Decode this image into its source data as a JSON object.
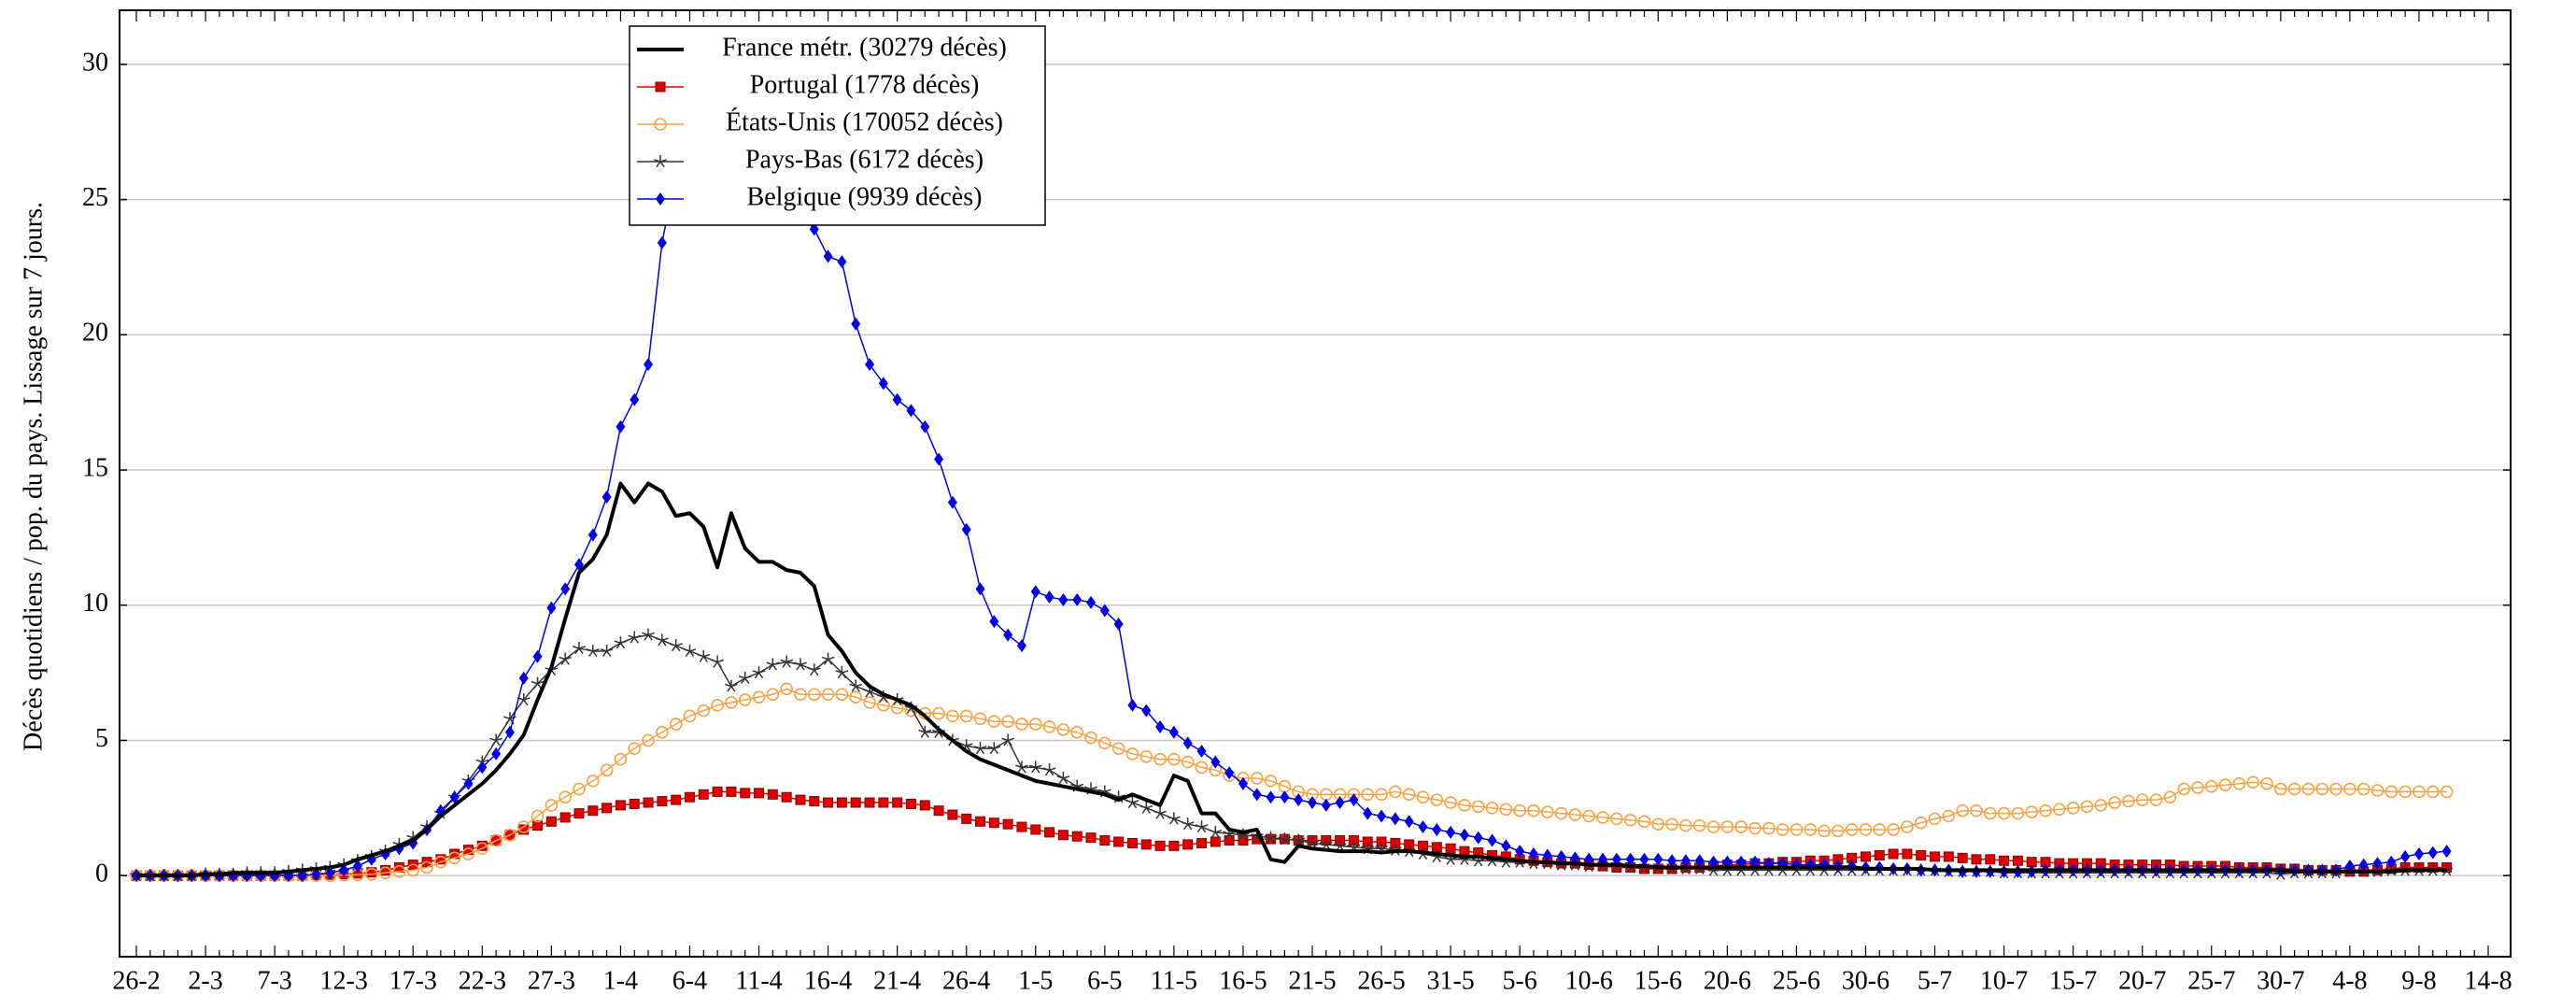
{
  "chart_data": {
    "type": "line",
    "y_label": "Décès quotidiens / pop. du pays. Lissage sur 7 jours.",
    "categories": [
      "26-2",
      null,
      null,
      null,
      null,
      "2-3",
      null,
      null,
      null,
      null,
      "7-3",
      null,
      null,
      null,
      null,
      "12-3",
      null,
      null,
      null,
      null,
      "17-3",
      null,
      null,
      null,
      null,
      "22-3",
      null,
      null,
      null,
      null,
      "27-3",
      null,
      null,
      null,
      null,
      "1-4",
      null,
      null,
      null,
      null,
      "6-4",
      null,
      null,
      null,
      null,
      "11-4",
      null,
      null,
      null,
      null,
      "16-4",
      null,
      null,
      null,
      null,
      "21-4",
      null,
      null,
      null,
      null,
      "26-4",
      null,
      null,
      null,
      null,
      "1-5",
      null,
      null,
      null,
      null,
      "6-5",
      null,
      null,
      null,
      null,
      "11-5",
      null,
      null,
      null,
      null,
      "16-5",
      null,
      null,
      null,
      null,
      "21-5",
      null,
      null,
      null,
      null,
      "26-5",
      null,
      null,
      null,
      null,
      "31-5",
      null,
      null,
      null,
      null,
      "5-6",
      null,
      null,
      null,
      null,
      "10-6",
      null,
      null,
      null,
      null,
      "15-6",
      null,
      null,
      null,
      null,
      "20-6",
      null,
      null,
      null,
      null,
      "25-6",
      null,
      null,
      null,
      null,
      "30-6",
      null,
      null,
      null,
      null,
      "5-7",
      null,
      null,
      null,
      null,
      "10-7",
      null,
      null,
      null,
      null,
      "15-7",
      null,
      null,
      null,
      null,
      "20-7",
      null,
      null,
      null,
      null,
      "25-7",
      null,
      null,
      null,
      null,
      "30-7",
      null,
      null,
      null,
      null,
      "4-8",
      null,
      null,
      null,
      null,
      "9-8",
      null,
      null,
      null,
      null,
      "14-8"
    ],
    "ylim": [
      -3,
      32
    ],
    "yticks": [
      0,
      5,
      10,
      15,
      20,
      25,
      30
    ],
    "grid": true,
    "series": [
      {
        "name": "France métr. (30279 décès)",
        "color": "#000000",
        "marker": "none",
        "line_width": 4,
        "values": [
          0,
          0,
          0,
          0,
          0,
          0.05,
          0.05,
          0.1,
          0.1,
          0.1,
          0.1,
          0.15,
          0.2,
          0.25,
          0.3,
          0.4,
          0.6,
          0.75,
          0.9,
          1.1,
          1.3,
          1.7,
          2.2,
          2.6,
          3.0,
          3.4,
          3.9,
          4.5,
          5.2,
          6.5,
          7.7,
          9.5,
          11.2,
          11.7,
          12.6,
          14.5,
          13.8,
          14.5,
          14.2,
          13.3,
          13.4,
          12.9,
          11.4,
          13.4,
          12.1,
          11.6,
          11.6,
          11.3,
          11.2,
          10.7,
          8.9,
          8.3,
          7.5,
          7.0,
          6.7,
          6.5,
          6.3,
          5.9,
          5.4,
          5.0,
          4.6,
          4.3,
          4.1,
          3.9,
          3.7,
          3.5,
          3.4,
          3.3,
          3.2,
          3.1,
          3.0,
          2.8,
          3.0,
          2.8,
          2.6,
          3.7,
          3.5,
          2.3,
          2.3,
          1.7,
          1.6,
          1.7,
          0.6,
          0.5,
          1.1,
          1.0,
          0.95,
          0.9,
          0.9,
          0.9,
          0.85,
          0.9,
          0.9,
          0.85,
          0.8,
          0.75,
          0.7,
          0.7,
          0.65,
          0.6,
          0.55,
          0.5,
          0.5,
          0.45,
          0.45,
          0.4,
          0.4,
          0.4,
          0.35,
          0.35,
          0.3,
          0.3,
          0.3,
          0.3,
          0.3,
          0.3,
          0.3,
          0.3,
          0.3,
          0.3,
          0.3,
          0.3,
          0.3,
          0.3,
          0.3,
          0.25,
          0.25,
          0.25,
          0.25,
          0.25,
          0.2,
          0.2,
          0.2,
          0.2,
          0.2,
          0.2,
          0.2,
          0.2,
          0.2,
          0.2,
          0.2,
          0.2,
          0.2,
          0.2,
          0.2,
          0.2,
          0.2,
          0.2,
          0.2,
          0.2,
          0.2,
          0.2,
          0.2,
          0.2,
          0.2,
          0.2,
          0.15,
          0.15,
          0.15,
          0.15,
          0.15,
          0.15,
          0.15,
          0.15,
          0.2,
          0.2,
          0.2,
          0.2,
          null,
          null,
          null
        ]
      },
      {
        "name": "Portugal (1778 décès)",
        "color": "#e00000",
        "marker": "square",
        "line_width": 1.5,
        "values": [
          0,
          0,
          0,
          0,
          0,
          0,
          0,
          0,
          0,
          0,
          0,
          0,
          0,
          0.02,
          0.03,
          0.05,
          0.08,
          0.12,
          0.2,
          0.3,
          0.4,
          0.5,
          0.6,
          0.8,
          0.95,
          1.1,
          1.3,
          1.5,
          1.7,
          1.85,
          2.0,
          2.15,
          2.3,
          2.4,
          2.5,
          2.6,
          2.65,
          2.7,
          2.75,
          2.8,
          2.9,
          3.0,
          3.1,
          3.1,
          3.05,
          3.05,
          3.0,
          2.9,
          2.8,
          2.75,
          2.7,
          2.7,
          2.7,
          2.7,
          2.7,
          2.7,
          2.65,
          2.6,
          2.4,
          2.25,
          2.1,
          2.0,
          1.95,
          1.9,
          1.8,
          1.7,
          1.6,
          1.5,
          1.45,
          1.4,
          1.3,
          1.25,
          1.2,
          1.15,
          1.1,
          1.1,
          1.15,
          1.2,
          1.25,
          1.3,
          1.3,
          1.35,
          1.35,
          1.35,
          1.3,
          1.3,
          1.3,
          1.3,
          1.3,
          1.25,
          1.25,
          1.2,
          1.15,
          1.1,
          1.05,
          1.0,
          0.9,
          0.85,
          0.75,
          0.7,
          0.6,
          0.55,
          0.5,
          0.45,
          0.45,
          0.4,
          0.35,
          0.3,
          0.3,
          0.25,
          0.25,
          0.25,
          0.3,
          0.3,
          0.35,
          0.4,
          0.4,
          0.45,
          0.45,
          0.5,
          0.5,
          0.55,
          0.55,
          0.6,
          0.65,
          0.7,
          0.75,
          0.8,
          0.8,
          0.75,
          0.7,
          0.7,
          0.65,
          0.6,
          0.6,
          0.55,
          0.55,
          0.5,
          0.5,
          0.45,
          0.45,
          0.45,
          0.45,
          0.4,
          0.4,
          0.4,
          0.4,
          0.4,
          0.35,
          0.35,
          0.35,
          0.35,
          0.3,
          0.3,
          0.3,
          0.25,
          0.25,
          0.2,
          0.2,
          0.2,
          0.15,
          0.15,
          0.2,
          0.25,
          0.3,
          0.3,
          0.3,
          0.3,
          null,
          null,
          null
        ]
      },
      {
        "name": "États-Unis (170052 décès)",
        "color": "#ffa040",
        "marker": "circle",
        "line_width": 1.5,
        "values": [
          0,
          0,
          0,
          0,
          0,
          0,
          0,
          0,
          0,
          0,
          0,
          0,
          0,
          0,
          0,
          0.02,
          0.03,
          0.05,
          0.1,
          0.15,
          0.2,
          0.3,
          0.5,
          0.65,
          0.8,
          1.0,
          1.3,
          1.5,
          1.8,
          2.2,
          2.6,
          2.9,
          3.2,
          3.5,
          3.9,
          4.3,
          4.7,
          5.0,
          5.3,
          5.6,
          5.9,
          6.1,
          6.3,
          6.4,
          6.5,
          6.6,
          6.7,
          6.9,
          6.7,
          6.7,
          6.7,
          6.7,
          6.6,
          6.4,
          6.3,
          6.2,
          6.1,
          6.0,
          6.0,
          5.9,
          5.9,
          5.8,
          5.7,
          5.7,
          5.6,
          5.6,
          5.5,
          5.4,
          5.3,
          5.1,
          4.9,
          4.7,
          4.5,
          4.4,
          4.3,
          4.3,
          4.2,
          4.0,
          3.9,
          3.7,
          3.6,
          3.6,
          3.5,
          3.3,
          3.1,
          3.0,
          3.0,
          3.0,
          3.0,
          3.0,
          3.0,
          3.1,
          3.0,
          2.9,
          2.8,
          2.7,
          2.6,
          2.55,
          2.5,
          2.45,
          2.4,
          2.4,
          2.35,
          2.3,
          2.25,
          2.2,
          2.15,
          2.1,
          2.05,
          2.0,
          1.9,
          1.9,
          1.85,
          1.85,
          1.8,
          1.8,
          1.8,
          1.75,
          1.75,
          1.7,
          1.7,
          1.7,
          1.65,
          1.65,
          1.7,
          1.7,
          1.7,
          1.7,
          1.8,
          1.95,
          2.1,
          2.2,
          2.4,
          2.4,
          2.3,
          2.3,
          2.3,
          2.35,
          2.4,
          2.45,
          2.5,
          2.55,
          2.6,
          2.7,
          2.75,
          2.8,
          2.8,
          2.9,
          3.2,
          3.25,
          3.3,
          3.35,
          3.4,
          3.45,
          3.4,
          3.2,
          3.2,
          3.2,
          3.2,
          3.2,
          3.2,
          3.2,
          3.15,
          3.1,
          3.1,
          3.1,
          3.1,
          3.1,
          null,
          null,
          null
        ]
      },
      {
        "name": "Pays-Bas (6172 décès)",
        "color": "#333333",
        "marker": "star",
        "line_width": 1.5,
        "values": [
          0,
          0,
          0,
          0,
          0,
          0.05,
          0.05,
          0.05,
          0.1,
          0.1,
          0.1,
          0.15,
          0.2,
          0.25,
          0.3,
          0.4,
          0.55,
          0.7,
          0.9,
          1.15,
          1.4,
          1.8,
          2.3,
          2.9,
          3.5,
          4.2,
          5.0,
          5.8,
          6.5,
          7.1,
          7.6,
          8.0,
          8.4,
          8.3,
          8.3,
          8.6,
          8.8,
          8.9,
          8.7,
          8.5,
          8.3,
          8.1,
          7.9,
          7.0,
          7.3,
          7.5,
          7.8,
          7.9,
          7.8,
          7.6,
          8.0,
          7.5,
          7.0,
          6.8,
          6.6,
          6.5,
          6.2,
          5.3,
          5.3,
          5.0,
          4.8,
          4.7,
          4.7,
          5.0,
          4.0,
          4.0,
          3.9,
          3.6,
          3.3,
          3.2,
          3.1,
          2.9,
          2.7,
          2.5,
          2.3,
          2.1,
          1.9,
          1.8,
          1.6,
          1.55,
          1.5,
          1.45,
          1.4,
          1.35,
          1.3,
          1.2,
          1.15,
          1.1,
          1.05,
          1.0,
          1.0,
          0.95,
          0.9,
          0.8,
          0.7,
          0.6,
          0.6,
          0.55,
          0.55,
          0.5,
          0.5,
          0.45,
          0.45,
          0.4,
          0.4,
          0.35,
          0.35,
          0.35,
          0.3,
          0.3,
          0.3,
          0.25,
          0.25,
          0.25,
          0.2,
          0.2,
          0.2,
          0.2,
          0.2,
          0.2,
          0.2,
          0.2,
          0.2,
          0.2,
          0.2,
          0.2,
          0.2,
          0.2,
          0.2,
          0.2,
          0.2,
          0.15,
          0.15,
          0.15,
          0.15,
          0.1,
          0.1,
          0.1,
          0.1,
          0.1,
          0.1,
          0.1,
          0.1,
          0.1,
          0.1,
          0.1,
          0.1,
          0.1,
          0.1,
          0.1,
          0.1,
          0.1,
          0.1,
          0.1,
          0.1,
          0.05,
          0.1,
          0.1,
          0.1,
          0.1,
          0.15,
          0.15,
          0.15,
          0.2,
          0.2,
          0.2,
          0.2,
          0.2,
          null,
          null,
          null
        ]
      },
      {
        "name": "Belgique (9939 décès)",
        "color": "#0000e6",
        "marker": "diamond",
        "line_width": 1.5,
        "values": [
          0,
          0,
          0,
          0,
          0,
          0,
          0,
          0,
          0,
          0,
          0,
          0,
          0,
          0.05,
          0.1,
          0.2,
          0.35,
          0.6,
          0.8,
          1.0,
          1.2,
          1.7,
          2.4,
          2.9,
          3.4,
          4.0,
          4.5,
          5.3,
          7.3,
          8.1,
          9.9,
          10.6,
          11.5,
          12.6,
          14.0,
          16.6,
          17.6,
          18.9,
          23.4,
          26.0,
          27.5,
          28.5,
          29.0,
          29.0,
          28.5,
          27.5,
          26.5,
          25.5,
          24.5,
          23.9,
          22.9,
          22.7,
          20.4,
          18.9,
          18.2,
          17.6,
          17.2,
          16.6,
          15.4,
          13.8,
          12.8,
          10.6,
          9.4,
          8.9,
          8.5,
          10.5,
          10.3,
          10.2,
          10.2,
          10.1,
          9.8,
          9.3,
          6.3,
          6.1,
          5.5,
          5.3,
          4.9,
          4.6,
          4.2,
          3.8,
          3.4,
          3.0,
          2.9,
          2.9,
          2.8,
          2.7,
          2.6,
          2.7,
          2.8,
          2.3,
          2.2,
          2.1,
          2.0,
          1.8,
          1.7,
          1.6,
          1.5,
          1.4,
          1.3,
          1.1,
          0.9,
          0.8,
          0.75,
          0.7,
          0.65,
          0.6,
          0.6,
          0.6,
          0.6,
          0.6,
          0.6,
          0.55,
          0.55,
          0.55,
          0.5,
          0.5,
          0.5,
          0.5,
          0.45,
          0.45,
          0.4,
          0.4,
          0.4,
          0.35,
          0.35,
          0.3,
          0.3,
          0.25,
          0.25,
          0.2,
          0.2,
          0.2,
          0.15,
          0.15,
          0.15,
          0.15,
          0.15,
          0.15,
          0.2,
          0.2,
          0.2,
          0.2,
          0.2,
          0.2,
          0.2,
          0.2,
          0.2,
          0.2,
          0.2,
          0.2,
          0.2,
          0.2,
          0.2,
          0.2,
          0.2,
          0.2,
          0.2,
          0.2,
          0.2,
          0.2,
          0.35,
          0.4,
          0.45,
          0.5,
          0.7,
          0.8,
          0.85,
          0.9,
          null,
          null,
          null
        ]
      }
    ]
  }
}
